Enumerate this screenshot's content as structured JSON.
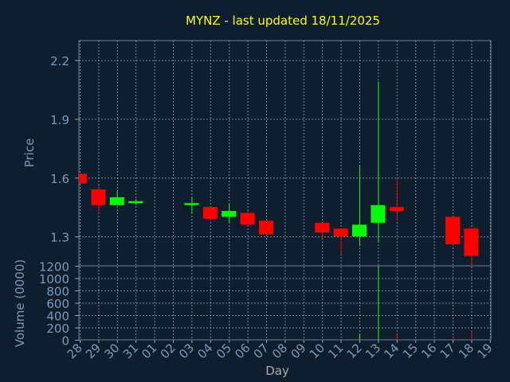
{
  "chart_data": {
    "type": "candlestick",
    "title": "MYNZ - last updated 18/11/2025",
    "xlabel": "Day",
    "price_panel": {
      "ylabel": "Price",
      "ylim": [
        1.15,
        2.3
      ],
      "yticks": [
        "1.3",
        "1.6",
        "1.9",
        "2.2"
      ],
      "grid": true
    },
    "volume_panel": {
      "ylabel": "Volume (0000)",
      "ylim": [
        0,
        1200
      ],
      "yticks": [
        "0",
        "200",
        "400",
        "600",
        "800",
        "1000",
        "1200"
      ],
      "grid": true
    },
    "x_ticks": [
      "28",
      "29",
      "30",
      "31",
      "01",
      "02",
      "03",
      "04",
      "05",
      "06",
      "07",
      "08",
      "09",
      "10",
      "11",
      "12",
      "13",
      "14",
      "15",
      "16",
      "17",
      "18",
      "19"
    ],
    "up_color": "#00ff00",
    "down_color": "#ff0000",
    "candles": [
      {
        "day": "28",
        "open": 1.62,
        "high": 1.62,
        "low": 1.57,
        "close": 1.57,
        "volume": 0
      },
      {
        "day": "29",
        "open": 1.54,
        "high": 1.56,
        "low": 1.42,
        "close": 1.46,
        "volume": 0
      },
      {
        "day": "30",
        "open": 1.46,
        "high": 1.53,
        "low": 1.46,
        "close": 1.5,
        "volume": 0
      },
      {
        "day": "31",
        "open": 1.47,
        "high": 1.49,
        "low": 1.46,
        "close": 1.48,
        "volume": 0
      },
      {
        "day": "03",
        "open": 1.46,
        "high": 1.5,
        "low": 1.42,
        "close": 1.47,
        "volume": 0
      },
      {
        "day": "04",
        "open": 1.45,
        "high": 1.45,
        "low": 1.38,
        "close": 1.39,
        "volume": 0
      },
      {
        "day": "05",
        "open": 1.4,
        "high": 1.47,
        "low": 1.37,
        "close": 1.43,
        "volume": 0
      },
      {
        "day": "06",
        "open": 1.42,
        "high": 1.43,
        "low": 1.36,
        "close": 1.36,
        "volume": 0
      },
      {
        "day": "07",
        "open": 1.38,
        "high": 1.38,
        "low": 1.31,
        "close": 1.31,
        "volume": 0
      },
      {
        "day": "10",
        "open": 1.37,
        "high": 1.37,
        "low": 1.29,
        "close": 1.32,
        "volume": 0
      },
      {
        "day": "11",
        "open": 1.34,
        "high": 1.34,
        "low": 1.21,
        "close": 1.3,
        "volume": 0
      },
      {
        "day": "12",
        "open": 1.3,
        "high": 1.66,
        "low": 1.25,
        "close": 1.36,
        "volume": 100
      },
      {
        "day": "13",
        "open": 1.37,
        "high": 2.09,
        "low": 1.27,
        "close": 1.46,
        "volume": 1200
      },
      {
        "day": "14",
        "open": 1.45,
        "high": 1.59,
        "low": 1.38,
        "close": 1.43,
        "volume": 80
      },
      {
        "day": "17",
        "open": 1.4,
        "high": 1.4,
        "low": 1.25,
        "close": 1.26,
        "volume": 40
      },
      {
        "day": "18",
        "open": 1.34,
        "high": 1.34,
        "low": 1.15,
        "close": 1.2,
        "volume": 150
      }
    ]
  }
}
